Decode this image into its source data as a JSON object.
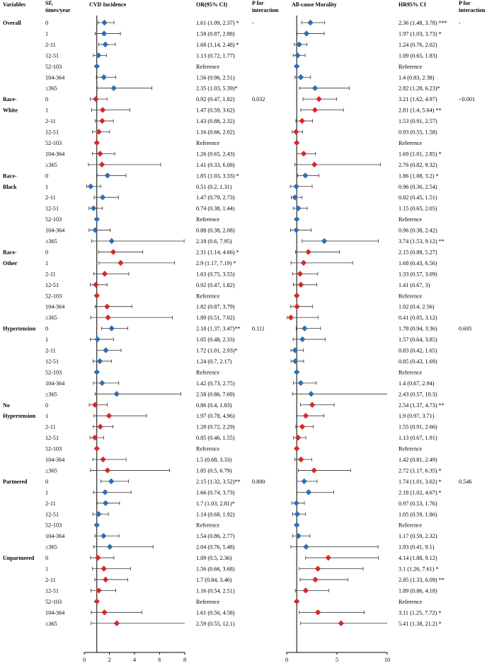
{
  "chart_data": {
    "type": "forest",
    "headers": {
      "variables": "Variables",
      "sf": [
        "SF,",
        "times/year"
      ],
      "cvd": "CVD Incidence",
      "or": "OR(95% CI)",
      "p1": [
        "P for",
        "interaction"
      ],
      "acm": "All-cause Morality",
      "hr": "HR95% CI",
      "p2": [
        "P for",
        "interaction"
      ]
    },
    "colors": {
      "blue": "#2e6eb5",
      "red": "#d42a2a",
      "ci": "#333333"
    },
    "cvd_axis": {
      "min": 0,
      "max": 8,
      "ticks": [
        0,
        2,
        4,
        6,
        8
      ],
      "ref": 1
    },
    "acm_axis": {
      "min": 0,
      "max": 10,
      "ticks": [
        0,
        5,
        10
      ],
      "ref": 1
    },
    "groups": [
      {
        "name": [
          "Overall"
        ],
        "color": "blue",
        "p_or": "-",
        "p_hr": "-",
        "rows": [
          {
            "sf": "0",
            "or": 1.61,
            "or_lo": 1.09,
            "or_hi": 2.37,
            "or_text": "1.61 (1.09, 2.37) *",
            "hr": 2.36,
            "hr_lo": 1.48,
            "hr_hi": 3.78,
            "hr_text": "2.36 (1.48, 3.78) ***"
          },
          {
            "sf": "1",
            "or": 1.58,
            "or_lo": 0.87,
            "or_hi": 2.88,
            "or_text": "1.58 (0.87, 2.88)",
            "hr": 1.97,
            "hr_lo": 1.03,
            "hr_hi": 3.73,
            "hr_text": "1.97 (1.03, 3.73) *"
          },
          {
            "sf": "2-11",
            "or": 1.68,
            "or_lo": 1.14,
            "or_hi": 2.48,
            "or_text": "1.68 (1.14, 2.48) *",
            "hr": 1.24,
            "hr_lo": 0.76,
            "hr_hi": 2.02,
            "hr_text": "1.24 (0.76, 2.02)"
          },
          {
            "sf": "12-51",
            "or": 1.13,
            "or_lo": 0.72,
            "or_hi": 1.77,
            "or_text": "1.13 (0.72, 1.77)",
            "hr": 1.09,
            "hr_lo": 0.65,
            "hr_hi": 1.83,
            "hr_text": "1.09 (0.65, 1.83)"
          },
          {
            "sf": "52-103",
            "ref": true,
            "or_text": "Reference",
            "hr_text": "Reference"
          },
          {
            "sf": "104-364",
            "or": 1.56,
            "or_lo": 0.96,
            "or_hi": 2.51,
            "or_text": "1.56 (0.96, 2.51)",
            "hr": 1.4,
            "hr_lo": 0.83,
            "hr_hi": 2.38,
            "hr_text": "1.4 (0.83, 2.38)"
          },
          {
            "sf": "≥365",
            "or": 2.35,
            "or_lo": 1.03,
            "or_hi": 5.39,
            "or_text": "2.35 (1.03, 5.39)*",
            "hr": 2.82,
            "hr_lo": 1.28,
            "hr_hi": 6.23,
            "hr_text": "2.82 (1.28, 6.23)*"
          }
        ]
      },
      {
        "name": [
          "Race-",
          "White"
        ],
        "color": "red",
        "p_or": "0.032",
        "p_hr": "<0.001",
        "rows": [
          {
            "sf": "0",
            "or": 0.92,
            "or_lo": 0.47,
            "or_hi": 1.82,
            "or_text": "0.92 (0.47, 1.82)",
            "hr": 3.21,
            "hr_lo": 1.62,
            "hr_hi": 4.97,
            "hr_text": "3.21 (1.62, 4.97)"
          },
          {
            "sf": "1",
            "or": 1.47,
            "or_lo": 0.59,
            "or_hi": 3.62,
            "or_text": "1.47 (0.59, 3.62)",
            "hr": 2.81,
            "hr_lo": 1.4,
            "hr_hi": 5.64,
            "hr_text": "2.81 (1.4, 5.64) **"
          },
          {
            "sf": "2-11",
            "or": 1.43,
            "or_lo": 0.88,
            "or_hi": 2.32,
            "or_text": "1.43 (0.88, 2.32)",
            "hr": 1.53,
            "hr_lo": 0.91,
            "hr_hi": 2.57,
            "hr_text": "1.53 (0.91, 2.57)"
          },
          {
            "sf": "12-51",
            "or": 1.16,
            "or_lo": 0.66,
            "or_hi": 2.02,
            "or_text": "1.16 (0.66, 2.02)",
            "hr": 0.93,
            "hr_lo": 0.55,
            "hr_hi": 1.58,
            "hr_text": "0.93 (0.55, 1.58)"
          },
          {
            "sf": "52-103",
            "ref": true,
            "or_text": "Reference",
            "hr_text": "Reference"
          },
          {
            "sf": "104-364",
            "or": 1.26,
            "or_lo": 0.65,
            "or_hi": 2.43,
            "or_text": "1.26 (0.65, 2.43)",
            "hr": 1.69,
            "hr_lo": 1.01,
            "hr_hi": 2.85,
            "hr_text": "1.69 (1.01, 2.85) *"
          },
          {
            "sf": "≥365",
            "or": 1.41,
            "or_lo": 0.33,
            "or_hi": 6.08,
            "or_text": "1.41 (0.33, 6.08)",
            "hr": 2.76,
            "hr_lo": 0.82,
            "hr_hi": 9.32,
            "hr_text": "2.76 (0.82, 9.32)"
          }
        ]
      },
      {
        "name": [
          "Race-",
          "Black"
        ],
        "color": "blue",
        "p_or": "",
        "p_hr": "",
        "rows": [
          {
            "sf": "0",
            "or": 1.85,
            "or_lo": 1.03,
            "or_hi": 3.33,
            "or_text": "1.85 (1.03, 3.33) *",
            "hr": 1.86,
            "hr_lo": 1.08,
            "hr_hi": 3.2,
            "hr_text": "1.86 (1.08, 3.2) *"
          },
          {
            "sf": "1",
            "or": 0.51,
            "or_lo": 0.2,
            "or_hi": 1.31,
            "or_text": "0.51 (0.2, 1.31)",
            "hr": 0.96,
            "hr_lo": 0.36,
            "hr_hi": 2.54,
            "hr_text": "0.96 (0.36, 2.54)"
          },
          {
            "sf": "2-11",
            "or": 1.47,
            "or_lo": 0.79,
            "or_hi": 2.73,
            "or_text": "1.47 (0.79, 2.73)",
            "hr": 0.82,
            "hr_lo": 0.45,
            "hr_hi": 1.51,
            "hr_text": "0.82 (0.45, 1.51)"
          },
          {
            "sf": "12-51",
            "or": 0.74,
            "or_lo": 0.38,
            "or_hi": 1.44,
            "or_text": "0.74 (0.38, 1.44)",
            "hr": 1.15,
            "hr_lo": 0.65,
            "hr_hi": 2.05,
            "hr_text": "1.15 (0.65, 2.05)"
          },
          {
            "sf": "52-103",
            "ref": true,
            "or_text": "Reference",
            "hr_text": "Reference"
          },
          {
            "sf": "104-364",
            "or": 0.88,
            "or_lo": 0.38,
            "or_hi": 2.08,
            "or_text": "0.88 (0.38, 2.08)",
            "hr": 0.96,
            "hr_lo": 0.38,
            "hr_hi": 2.42,
            "hr_text": "0.96 (0.38, 2.42)"
          },
          {
            "sf": "≥365",
            "or": 2.18,
            "or_lo": 0.6,
            "or_hi": 7.95,
            "or_text": "2.18 (0.6, 7.95)",
            "hr": 3.74,
            "hr_lo": 1.53,
            "hr_hi": 9.12,
            "hr_text": "3.74 (1.53, 9.12) **"
          }
        ]
      },
      {
        "name": [
          "Race-",
          "Other"
        ],
        "color": "red",
        "p_or": "",
        "p_hr": "",
        "rows": [
          {
            "sf": "0",
            "or": 2.31,
            "or_lo": 1.14,
            "or_hi": 4.66,
            "or_text": "2.31 (1.14, 4.66) *",
            "hr": 2.15,
            "hr_lo": 0.88,
            "hr_hi": 5.27,
            "hr_text": "2.15 (0.88, 5.27)"
          },
          {
            "sf": "1",
            "or": 2.9,
            "or_lo": 1.17,
            "or_hi": 7.19,
            "or_text": "2.9 (1.17, 7.19) *",
            "hr": 1.68,
            "hr_lo": 0.43,
            "hr_hi": 6.56,
            "hr_text": "1.68 (0.43, 6.56)"
          },
          {
            "sf": "2-11",
            "or": 1.63,
            "or_lo": 0.75,
            "or_hi": 3.55,
            "or_text": "1.63 (0.75, 3.55)",
            "hr": 1.33,
            "hr_lo": 0.57,
            "hr_hi": 3.09,
            "hr_text": "1.33 (0.57, 3.09)"
          },
          {
            "sf": "12-51",
            "or": 0.92,
            "or_lo": 0.47,
            "or_hi": 1.82,
            "or_text": "0.92 (0.47, 1.82)",
            "hr": 1.41,
            "hr_lo": 0.67,
            "hr_hi": 3,
            "hr_text": "1.41 (0.67, 3)"
          },
          {
            "sf": "52-103",
            "ref": true,
            "or_text": "Reference",
            "hr_text": "Reference"
          },
          {
            "sf": "104-364",
            "or": 1.82,
            "or_lo": 0.87,
            "or_hi": 3.79,
            "or_text": "1.82 (0.87, 3.79)",
            "hr": 1.02,
            "hr_lo": 0.4,
            "hr_hi": 2.56,
            "hr_text": "1.02 (0.4, 2.56)"
          },
          {
            "sf": "≥365",
            "or": 1.89,
            "or_lo": 0.51,
            "or_hi": 7.02,
            "or_text": "1.89 (0.51, 7.02)",
            "hr": 0.41,
            "hr_lo": 0.05,
            "hr_hi": 3.12,
            "hr_text": "0.41 (0.05, 3.12)"
          }
        ]
      },
      {
        "name": [
          "Hypertension"
        ],
        "color": "blue",
        "p_or": "0.111",
        "p_hr": "0.695",
        "rows": [
          {
            "sf": "0",
            "or": 2.18,
            "or_lo": 1.37,
            "or_hi": 3.47,
            "or_text": "2.18 (1.37, 3.47)**",
            "hr": 1.78,
            "hr_lo": 0.94,
            "hr_hi": 3.36,
            "hr_text": "1.78 (0.94, 3.36)"
          },
          {
            "sf": "1",
            "or": 1.05,
            "or_lo": 0.48,
            "or_hi": 2.33,
            "or_text": "1.05 (0.48, 2.33)",
            "hr": 1.57,
            "hr_lo": 0.64,
            "hr_hi": 3.85,
            "hr_text": "1.57 (0.64, 3.85)"
          },
          {
            "sf": "2-11",
            "or": 1.72,
            "or_lo": 1.01,
            "or_hi": 2.93,
            "or_text": "1.72 (1.01, 2.93)*",
            "hr": 0.83,
            "hr_lo": 0.42,
            "hr_hi": 1.65,
            "hr_text": "0.83 (0.42, 1.65)"
          },
          {
            "sf": "12-51",
            "or": 1.24,
            "or_lo": 0.7,
            "or_hi": 2.17,
            "or_text": "1.24 (0.7, 2.17)",
            "hr": 0.85,
            "hr_lo": 0.43,
            "hr_hi": 1.69,
            "hr_text": "0.85 (0.43, 1.69)"
          },
          {
            "sf": "52-103",
            "ref": true,
            "or_text": "Reference",
            "hr_text": "Reference"
          },
          {
            "sf": "104-364",
            "or": 1.42,
            "or_lo": 0.73,
            "or_hi": 2.75,
            "or_text": "1.42 (0.73, 2.75)",
            "hr": 1.4,
            "hr_lo": 0.67,
            "hr_hi": 2.94,
            "hr_text": "1.4 (0.67, 2.94)"
          },
          {
            "sf": "≥365",
            "or": 2.58,
            "or_lo": 0.86,
            "or_hi": 7.69,
            "or_text": "2.58 (0.86, 7.69)",
            "hr": 2.43,
            "hr_lo": 0.57,
            "hr_hi": 10.3,
            "hr_text": "2.43 (0.57, 10.3)"
          }
        ]
      },
      {
        "name": [
          "No",
          "Hypertension"
        ],
        "color": "red",
        "p_or": "",
        "p_hr": "",
        "rows": [
          {
            "sf": "0",
            "or": 0.86,
            "or_lo": 0.4,
            "or_hi": 1.83,
            "or_text": "0.86 (0.4, 1.83)",
            "hr": 2.54,
            "hr_lo": 1.37,
            "hr_hi": 4.73,
            "hr_text": "2.54 (1.37, 4.73) **"
          },
          {
            "sf": "1",
            "or": 1.97,
            "or_lo": 0.78,
            "or_hi": 4.96,
            "or_text": "1.97 (0.78, 4.96)",
            "hr": 1.9,
            "hr_lo": 0.97,
            "hr_hi": 3.71,
            "hr_text": "1.9 (0.97, 3.71)"
          },
          {
            "sf": "2-11",
            "or": 1.28,
            "or_lo": 0.72,
            "or_hi": 2.29,
            "or_text": "1.28 (0.72, 2.29)",
            "hr": 1.55,
            "hr_lo": 0.91,
            "hr_hi": 2.66,
            "hr_text": "1.55 (0.91, 2.66)"
          },
          {
            "sf": "12-51",
            "or": 0.85,
            "or_lo": 0.46,
            "or_hi": 1.55,
            "or_text": "0.85 (0.46, 1.55)",
            "hr": 1.13,
            "hr_lo": 0.67,
            "hr_hi": 1.91,
            "hr_text": "1.13 (0.67, 1.91)"
          },
          {
            "sf": "52-103",
            "ref": true,
            "or_text": "Reference",
            "hr_text": "Reference"
          },
          {
            "sf": "104-364",
            "or": 1.5,
            "or_lo": 0.68,
            "or_hi": 3.33,
            "or_text": "1.5 (0.68, 3.33)",
            "hr": 1.42,
            "hr_lo": 0.81,
            "hr_hi": 2.49,
            "hr_text": "1.42 (0.81, 2.49)"
          },
          {
            "sf": "≥365",
            "or": 1.85,
            "or_lo": 0.5,
            "or_hi": 6.79,
            "or_text": "1.85 (0.5, 6.79)",
            "hr": 2.72,
            "hr_lo": 1.17,
            "hr_hi": 6.35,
            "hr_text": "2.72 (1.17, 6.35) *"
          }
        ]
      },
      {
        "name": [
          "Partnered"
        ],
        "color": "blue",
        "p_or": "0.800",
        "p_hr": "0.546",
        "rows": [
          {
            "sf": "0",
            "or": 2.15,
            "or_lo": 1.32,
            "or_hi": 3.52,
            "or_text": "2.15 (1.32, 3.52)**",
            "hr": 1.74,
            "hr_lo": 1.01,
            "hr_hi": 3.02,
            "hr_text": "1.74 (1.01, 3.02) *"
          },
          {
            "sf": "1",
            "or": 1.66,
            "or_lo": 0.74,
            "or_hi": 3.73,
            "or_text": "1.66 (0.74, 3.73)",
            "hr": 2.18,
            "hr_lo": 1.02,
            "hr_hi": 4.67,
            "hr_text": "2.18 (1.02, 4.67) *"
          },
          {
            "sf": "2-11",
            "or": 1.7,
            "or_lo": 1.03,
            "or_hi": 2.81,
            "or_text": "1.7 (1.03, 2.81)*",
            "hr": 0.97,
            "hr_lo": 0.53,
            "hr_hi": 1.76,
            "hr_text": "0.97 (0.53, 1.76)"
          },
          {
            "sf": "12-51",
            "or": 1.14,
            "or_lo": 0.68,
            "or_hi": 1.92,
            "or_text": "1.14 (0.68, 1.92)",
            "hr": 1.05,
            "hr_lo": 0.59,
            "hr_hi": 1.86,
            "hr_text": "1.05 (0.59, 1.86)"
          },
          {
            "sf": "52-103",
            "ref": true,
            "or_text": "Reference",
            "hr_text": "Reference"
          },
          {
            "sf": "104-364",
            "or": 1.54,
            "or_lo": 0.86,
            "or_hi": 2.77,
            "or_text": "1.54 (0.86, 2.77)",
            "hr": 1.17,
            "hr_lo": 0.59,
            "hr_hi": 2.32,
            "hr_text": "1.17 (0.59, 2.32)"
          },
          {
            "sf": "≥365",
            "or": 2.04,
            "or_lo": 0.76,
            "or_hi": 5.48,
            "or_text": "2.04 (0.76, 5.48)",
            "hr": 1.93,
            "hr_lo": 0.41,
            "hr_hi": 9.1,
            "hr_text": "1.93 (0.41, 9.1)"
          }
        ]
      },
      {
        "name": [
          "Unpartnered"
        ],
        "color": "red",
        "p_or": "",
        "p_hr": "",
        "rows": [
          {
            "sf": "0",
            "or": 1.09,
            "or_lo": 0.5,
            "or_hi": 2.36,
            "or_text": "1.09 (0.5, 2.36)",
            "hr": 4.14,
            "hr_lo": 1.88,
            "hr_hi": 9.12,
            "hr_text": "4.14 (1.88, 9.12)"
          },
          {
            "sf": "1",
            "or": 1.56,
            "or_lo": 0.66,
            "or_hi": 3.68,
            "or_text": "1.56 (0.66, 3.68)",
            "hr": 3.1,
            "hr_lo": 1.26,
            "hr_hi": 7.61,
            "hr_text": "3.1 (1.26, 7.61) *"
          },
          {
            "sf": "2-11",
            "or": 1.7,
            "or_lo": 0.84,
            "or_hi": 3.46,
            "or_text": "1.7 (0.84, 3.46)",
            "hr": 2.85,
            "hr_lo": 1.33,
            "hr_hi": 6.09,
            "hr_text": "2.85 (1.33, 6.09) **"
          },
          {
            "sf": "12-51",
            "or": 1.16,
            "or_lo": 0.54,
            "or_hi": 2.51,
            "or_text": "1.16 (0.54, 2.51)",
            "hr": 1.89,
            "hr_lo": 0.86,
            "hr_hi": 4.18,
            "hr_text": "1.89 (0.86, 4.18)"
          },
          {
            "sf": "52-103",
            "ref": true,
            "or_text": "Reference",
            "hr_text": "Reference"
          },
          {
            "sf": "104-364",
            "or": 1.61,
            "or_lo": 0.56,
            "or_hi": 4.58,
            "or_text": "1.61 (0.56, 4.58)",
            "hr": 3.11,
            "hr_lo": 1.25,
            "hr_hi": 7.72,
            "hr_text": "3.11 (1.25, 7.72) *"
          },
          {
            "sf": "≥365",
            "or": 2.59,
            "or_lo": 0.55,
            "or_hi": 12.1,
            "or_text": "2.59 (0.55, 12.1)",
            "hr": 5.41,
            "hr_lo": 1.38,
            "hr_hi": 21.2,
            "hr_text": "5.41 (1.38, 21.2) *"
          }
        ]
      }
    ]
  }
}
